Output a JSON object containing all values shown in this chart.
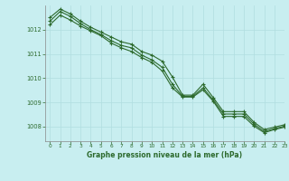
{
  "background_color": "#c8eef0",
  "line_color": "#2d6a2d",
  "grid_color": "#b0dde0",
  "xlabel": "Graphe pression niveau de la mer (hPa)",
  "ylim": [
    1007.4,
    1013.0
  ],
  "xlim": [
    -0.5,
    23
  ],
  "yticks": [
    1008,
    1009,
    1010,
    1011,
    1012
  ],
  "xticks": [
    0,
    1,
    2,
    3,
    4,
    5,
    6,
    7,
    8,
    9,
    10,
    11,
    12,
    13,
    14,
    15,
    16,
    17,
    18,
    19,
    20,
    21,
    22,
    23
  ],
  "series1": [
    1012.5,
    1012.85,
    1012.65,
    1012.35,
    1012.1,
    1011.9,
    1011.7,
    1011.5,
    1011.4,
    1011.1,
    1010.95,
    1010.7,
    1010.05,
    1009.3,
    1009.3,
    1009.75,
    1009.2,
    1008.62,
    1008.62,
    1008.62,
    1008.18,
    1007.88,
    1007.98,
    1008.08
  ],
  "series2": [
    1012.35,
    1012.75,
    1012.55,
    1012.25,
    1012.0,
    1011.8,
    1011.55,
    1011.35,
    1011.25,
    1010.95,
    1010.75,
    1010.45,
    1009.75,
    1009.25,
    1009.25,
    1009.6,
    1009.1,
    1008.52,
    1008.52,
    1008.52,
    1008.1,
    1007.8,
    1007.92,
    1008.02
  ],
  "series3": [
    1012.2,
    1012.6,
    1012.4,
    1012.15,
    1011.95,
    1011.75,
    1011.45,
    1011.25,
    1011.1,
    1010.85,
    1010.65,
    1010.3,
    1009.6,
    1009.22,
    1009.22,
    1009.52,
    1009.05,
    1008.42,
    1008.42,
    1008.42,
    1008.02,
    1007.75,
    1007.88,
    1007.98
  ]
}
